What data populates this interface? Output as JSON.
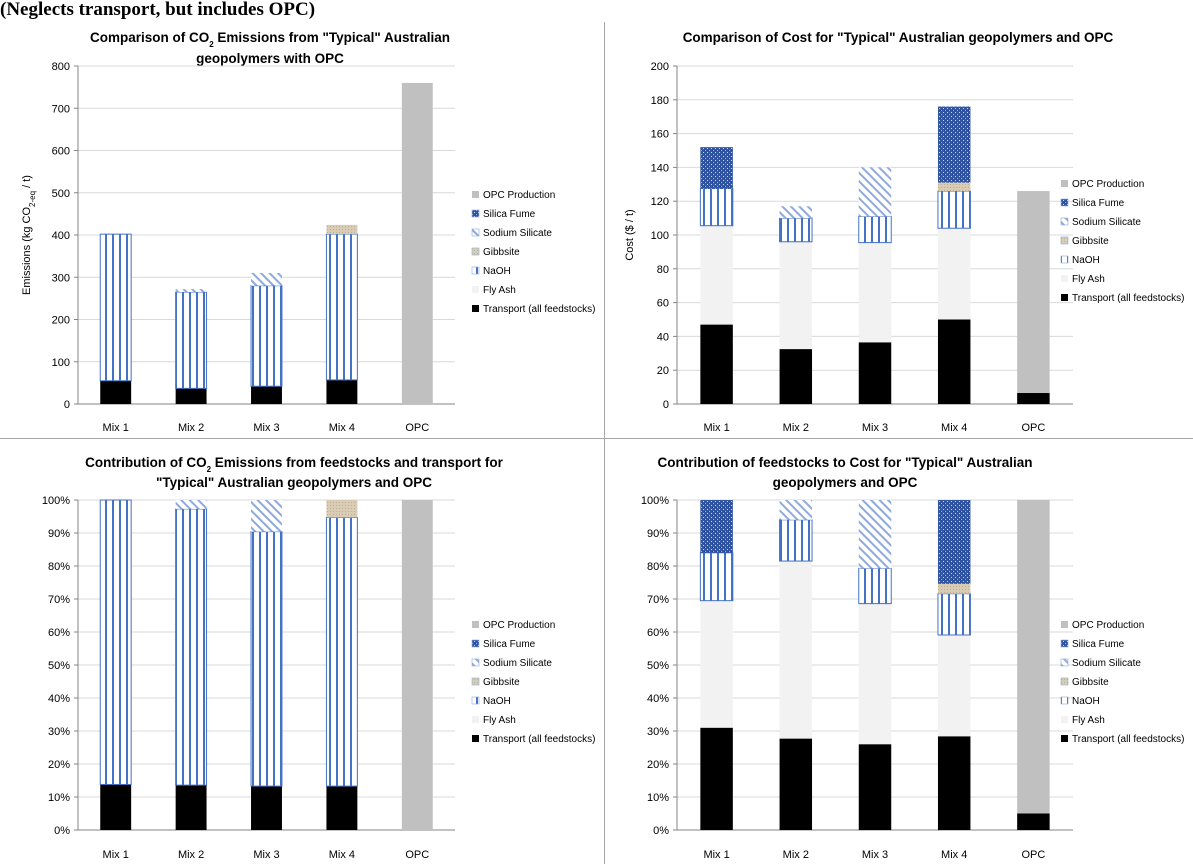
{
  "heading": "(Neglects transport, but includes OPC)",
  "colors": {
    "transport": "#000000",
    "fly_ash": "#f2f2f2",
    "naoh": "#4472c4",
    "gibbsite": "#d9ccb4",
    "sodium_silicate": "#8ea9db",
    "silica_fume": "#2f55a4",
    "opc": "#c0c0c0"
  },
  "chart_data": [
    {
      "id": "emissions-abs",
      "type": "bar",
      "stacked": true,
      "title_lines": [
        [
          {
            "t": "Comparison of CO"
          },
          {
            "t": "2",
            "sub": true
          },
          {
            "t": " Emissions from \"Typical\" Australian"
          }
        ],
        [
          {
            "t": "geopolymers with OPC"
          }
        ]
      ],
      "ylabel": [
        {
          "t": "Emissions (kg CO"
        },
        {
          "t": "2-eq",
          "sub": true
        },
        {
          "t": " / t)"
        }
      ],
      "ylim": [
        0,
        800
      ],
      "yticks": [
        0,
        100,
        200,
        300,
        400,
        500,
        600,
        700,
        800
      ],
      "ytick_labels": [
        "0",
        "100",
        "200",
        "300",
        "400",
        "500",
        "600",
        "700",
        "800"
      ],
      "categories": [
        "Mix 1",
        "Mix 2",
        "Mix 3",
        "Mix 4",
        "OPC"
      ],
      "legend": [
        "OPC Production",
        "Silica Fume",
        "Sodium Silicate",
        "Gibbsite",
        "NaOH",
        "Fly Ash",
        "Transport (all feedstocks)"
      ],
      "series": [
        {
          "name": "Transport (all feedstocks)",
          "key": "transport",
          "values": [
            55,
            37,
            42,
            57,
            0
          ]
        },
        {
          "name": "Fly Ash",
          "key": "fly_ash",
          "values": [
            0,
            0,
            0,
            0,
            0
          ]
        },
        {
          "name": "NaOH",
          "key": "naoh",
          "values": [
            347,
            228,
            238,
            345,
            0
          ]
        },
        {
          "name": "Gibbsite",
          "key": "gibbsite",
          "values": [
            0,
            0,
            0,
            22,
            0
          ]
        },
        {
          "name": "Sodium Silicate",
          "key": "sodium_silicate",
          "values": [
            0,
            7,
            30,
            0,
            0
          ]
        },
        {
          "name": "Silica Fume",
          "key": "silica_fume",
          "values": [
            0,
            0,
            0,
            0,
            0
          ]
        },
        {
          "name": "OPC Production",
          "key": "opc",
          "values": [
            0,
            0,
            0,
            0,
            760
          ]
        }
      ]
    },
    {
      "id": "cost-abs",
      "type": "bar",
      "stacked": true,
      "title_lines": [
        [
          {
            "t": "Comparison of Cost for \"Typical\" Australian geopolymers and OPC"
          }
        ]
      ],
      "ylabel": [
        {
          "t": "Cost ($ / t)"
        }
      ],
      "ylim": [
        0,
        200
      ],
      "yticks": [
        0,
        20,
        40,
        60,
        80,
        100,
        120,
        140,
        160,
        180,
        200
      ],
      "ytick_labels": [
        "0",
        "20",
        "40",
        "60",
        "80",
        "100",
        "120",
        "140",
        "160",
        "180",
        "200"
      ],
      "categories": [
        "Mix 1",
        "Mix 2",
        "Mix 3",
        "Mix 4",
        "OPC"
      ],
      "legend": [
        "OPC Production",
        "Silica Fume",
        "Sodium Silicate",
        "Gibbsite",
        "NaOH",
        "Fly Ash",
        "Transport (all feedstocks)"
      ],
      "series": [
        {
          "name": "Transport (all feedstocks)",
          "key": "transport",
          "values": [
            47,
            32.5,
            36.5,
            50,
            6.5
          ]
        },
        {
          "name": "Fly Ash",
          "key": "fly_ash",
          "values": [
            58.5,
            63.5,
            59,
            54,
            0
          ]
        },
        {
          "name": "NaOH",
          "key": "naoh",
          "values": [
            22,
            14,
            15.5,
            22,
            0
          ]
        },
        {
          "name": "Gibbsite",
          "key": "gibbsite",
          "values": [
            0,
            0,
            0,
            5,
            0
          ]
        },
        {
          "name": "Sodium Silicate",
          "key": "sodium_silicate",
          "values": [
            0,
            7,
            29,
            0,
            0
          ]
        },
        {
          "name": "Silica Fume",
          "key": "silica_fume",
          "values": [
            24.5,
            0,
            0,
            45,
            0
          ]
        },
        {
          "name": "OPC Production",
          "key": "opc",
          "values": [
            0,
            0,
            0,
            0,
            119.5
          ]
        }
      ]
    },
    {
      "id": "emissions-pct",
      "type": "bar",
      "stacked": true,
      "title_lines": [
        [
          {
            "t": "Contribution of CO"
          },
          {
            "t": "2",
            "sub": true
          },
          {
            "t": " Emissions from feedstocks and transport for"
          }
        ],
        [
          {
            "t": "\"Typical\" Australian geopolymers and OPC"
          }
        ]
      ],
      "ylabel": [],
      "ylim": [
        0,
        100
      ],
      "yticks": [
        0,
        10,
        20,
        30,
        40,
        50,
        60,
        70,
        80,
        90,
        100
      ],
      "ytick_labels": [
        "0%",
        "10%",
        "20%",
        "30%",
        "40%",
        "50%",
        "60%",
        "70%",
        "80%",
        "90%",
        "100%"
      ],
      "categories": [
        "Mix 1",
        "Mix 2",
        "Mix 3",
        "Mix 4",
        "OPC"
      ],
      "legend": [
        "OPC Production",
        "Silica Fume",
        "Sodium Silicate",
        "Gibbsite",
        "NaOH",
        "Fly Ash",
        "Transport (all feedstocks)"
      ],
      "series": [
        {
          "name": "Transport (all feedstocks)",
          "key": "transport",
          "values": [
            13.8,
            13.6,
            13.3,
            13.3,
            0
          ]
        },
        {
          "name": "Fly Ash",
          "key": "fly_ash",
          "values": [
            0,
            0,
            0,
            0,
            0
          ]
        },
        {
          "name": "NaOH",
          "key": "naoh",
          "values": [
            86.2,
            83.7,
            77.1,
            81.4,
            0
          ]
        },
        {
          "name": "Gibbsite",
          "key": "gibbsite",
          "values": [
            0,
            0,
            0,
            5.3,
            0
          ]
        },
        {
          "name": "Sodium Silicate",
          "key": "sodium_silicate",
          "values": [
            0,
            2.7,
            9.6,
            0,
            0
          ]
        },
        {
          "name": "Silica Fume",
          "key": "silica_fume",
          "values": [
            0,
            0,
            0,
            0,
            0
          ]
        },
        {
          "name": "OPC Production",
          "key": "opc",
          "values": [
            0,
            0,
            0,
            0,
            100
          ]
        }
      ]
    },
    {
      "id": "cost-pct",
      "type": "bar",
      "stacked": true,
      "title_lines": [
        [
          {
            "t": "Contribution of feedstocks to Cost for \"Typical\" Australian"
          }
        ],
        [
          {
            "t": "geopolymers and OPC"
          }
        ]
      ],
      "ylabel": [],
      "ylim": [
        0,
        100
      ],
      "yticks": [
        0,
        10,
        20,
        30,
        40,
        50,
        60,
        70,
        80,
        90,
        100
      ],
      "ytick_labels": [
        "0%",
        "10%",
        "20%",
        "30%",
        "40%",
        "50%",
        "60%",
        "70%",
        "80%",
        "90%",
        "100%"
      ],
      "categories": [
        "Mix 1",
        "Mix 2",
        "Mix 3",
        "Mix 4",
        "OPC"
      ],
      "legend": [
        "OPC Production",
        "Silica Fume",
        "Sodium Silicate",
        "Gibbsite",
        "NaOH",
        "Fly Ash",
        "Transport (all feedstocks)"
      ],
      "series": [
        {
          "name": "Transport (all feedstocks)",
          "key": "transport",
          "values": [
            31,
            27.7,
            26,
            28.4,
            5
          ]
        },
        {
          "name": "Fly Ash",
          "key": "fly_ash",
          "values": [
            38.5,
            53.8,
            42.6,
            30.7,
            0
          ]
        },
        {
          "name": "NaOH",
          "key": "naoh",
          "values": [
            14.5,
            12.5,
            10.7,
            12.5,
            0
          ]
        },
        {
          "name": "Gibbsite",
          "key": "gibbsite",
          "values": [
            0,
            0,
            0,
            3,
            0
          ]
        },
        {
          "name": "Sodium Silicate",
          "key": "sodium_silicate",
          "values": [
            0,
            6,
            20.7,
            0,
            0
          ]
        },
        {
          "name": "Silica Fume",
          "key": "silica_fume",
          "values": [
            16,
            0,
            0,
            25.4,
            0
          ]
        },
        {
          "name": "OPC Production",
          "key": "opc",
          "values": [
            0,
            0,
            0,
            0,
            95
          ]
        }
      ]
    }
  ]
}
